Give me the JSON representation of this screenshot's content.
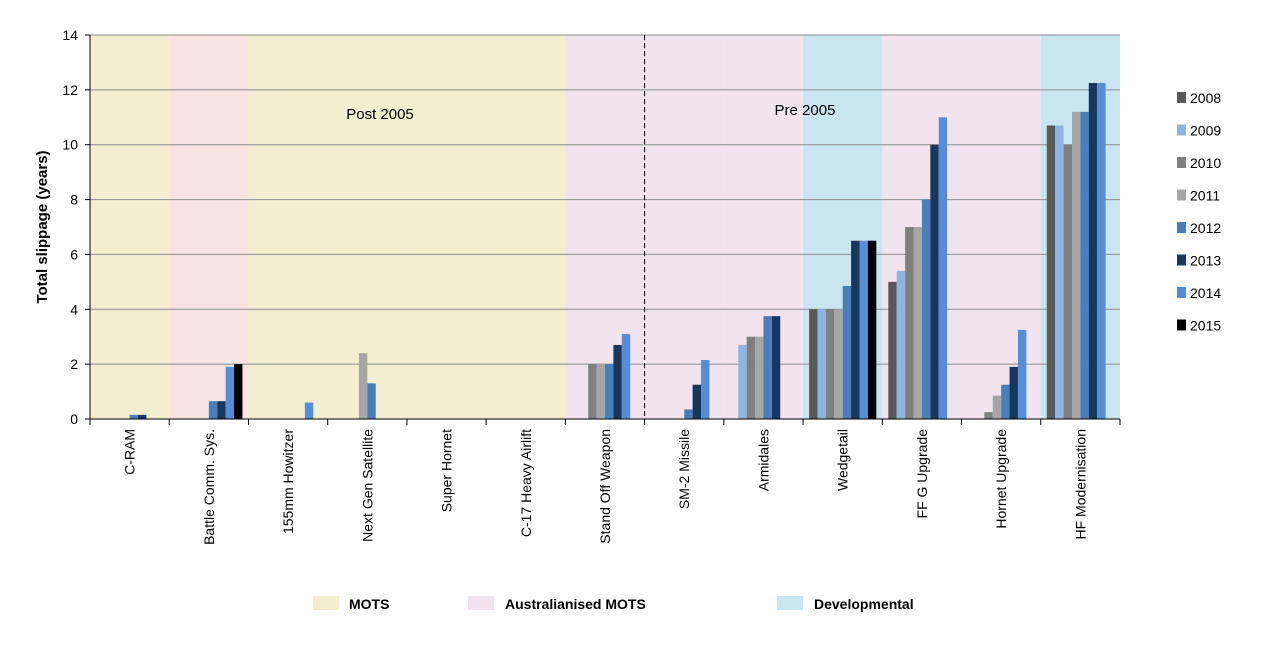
{
  "chart_data": {
    "type": "bar",
    "title": "",
    "xlabel": "",
    "ylabel": "Total slippage (years)",
    "ylim": [
      0,
      14
    ],
    "yticks": [
      0,
      2,
      4,
      6,
      8,
      10,
      12,
      14
    ],
    "grid": true,
    "categories": [
      "C-RAM",
      "Battle Comm. Sys.",
      "155mm Howitzer",
      "Next Gen Satellite",
      "Super Hornet",
      "C-17 Heavy Airlift",
      "Stand Off Weapon",
      "SM-2 Missile",
      "Armidales",
      "Wedgetail",
      "FF G Upgrade",
      "Hornet Upgrade",
      "HF Modernisation"
    ],
    "series": [
      {
        "name": "2008",
        "color": "#595959",
        "values": [
          0,
          0,
          0,
          0,
          0,
          0,
          0,
          0,
          0,
          4.0,
          5.0,
          0,
          10.7
        ]
      },
      {
        "name": "2009",
        "color": "#8eb4e3",
        "values": [
          0,
          0,
          0,
          0,
          0,
          0,
          0,
          0,
          2.7,
          4.0,
          5.4,
          0,
          10.7
        ]
      },
      {
        "name": "2010",
        "color": "#7f7f7f",
        "values": [
          0,
          0,
          0,
          0,
          0,
          0,
          2.0,
          0,
          3.0,
          4.0,
          7.0,
          0.25,
          10.0
        ]
      },
      {
        "name": "2011",
        "color": "#a6a6a6",
        "values": [
          0,
          0,
          0,
          2.4,
          0,
          0,
          2.0,
          0,
          3.0,
          4.0,
          7.0,
          0.85,
          11.2
        ]
      },
      {
        "name": "2012",
        "color": "#4a7ebb",
        "values": [
          0.15,
          0.65,
          0,
          1.3,
          0,
          0,
          2.0,
          0.35,
          3.75,
          4.85,
          8.0,
          1.25,
          11.2
        ]
      },
      {
        "name": "2013",
        "color": "#17375e",
        "values": [
          0.15,
          0.65,
          0,
          0,
          0,
          0,
          2.7,
          1.25,
          3.75,
          6.5,
          10.0,
          1.9,
          12.25
        ]
      },
      {
        "name": "2014",
        "color": "#558ed5",
        "values": [
          0,
          1.9,
          0.6,
          0,
          0,
          0,
          3.1,
          2.15,
          0,
          6.5,
          11.0,
          3.25,
          12.25
        ]
      },
      {
        "name": "2015",
        "color": "#000000",
        "values": [
          0,
          2.0,
          0,
          0,
          0,
          0,
          0,
          0,
          0,
          6.5,
          0,
          0,
          0
        ]
      }
    ],
    "category_groups": [
      "mots",
      "aus",
      "mots",
      "mots",
      "mots",
      "mots",
      "aus",
      "aus",
      "aus",
      "dev",
      "aus",
      "aus",
      "dev"
    ],
    "period_labels": {
      "left": "Post 2005",
      "right": "Pre 2005"
    },
    "legend_position": "right",
    "background_legend": [
      {
        "key": "mots",
        "label": "MOTS",
        "color": "#f2eecf"
      },
      {
        "key": "aus",
        "label": "Australianised MOTS",
        "color": "#f1e4ef"
      },
      {
        "key": "dev",
        "label": "Developmental",
        "color": "#c9e6f0"
      }
    ],
    "cra_background": "#f9e4e4"
  }
}
